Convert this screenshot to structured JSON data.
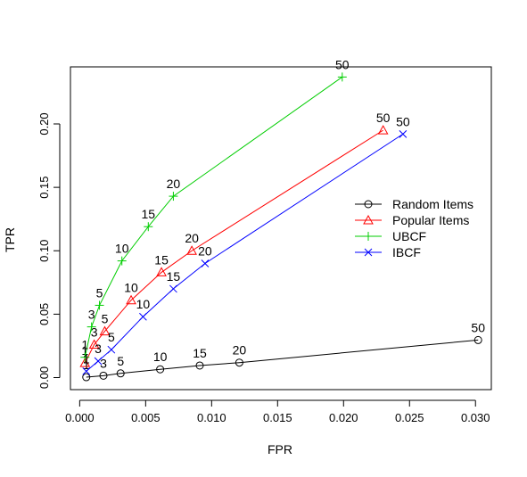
{
  "chart_data": {
    "type": "line",
    "title": "",
    "xlabel": "FPR",
    "ylabel": "TPR",
    "xlim": [
      -0.0007,
      0.0312
    ],
    "ylim": [
      -0.0095,
      0.245
    ],
    "x_ticks": [
      0.0,
      0.005,
      0.01,
      0.015,
      0.02,
      0.025,
      0.03
    ],
    "x_tick_labels": [
      "0.000",
      "0.005",
      "0.010",
      "0.015",
      "0.020",
      "0.025",
      "0.030"
    ],
    "y_ticks": [
      0.0,
      0.05,
      0.1,
      0.15,
      0.2
    ],
    "y_tick_labels": [
      "0.00",
      "0.05",
      "0.10",
      "0.15",
      "0.20"
    ],
    "grid": false,
    "legend_position": "right",
    "series": [
      {
        "name": "Random Items",
        "color": "#000000",
        "marker": "circle",
        "points": [
          {
            "x": 0.0005,
            "y": 0.0003,
            "label": "1"
          },
          {
            "x": 0.0018,
            "y": 0.0015,
            "label": "3"
          },
          {
            "x": 0.0031,
            "y": 0.0033,
            "label": "5"
          },
          {
            "x": 0.0061,
            "y": 0.0065,
            "label": "10"
          },
          {
            "x": 0.0091,
            "y": 0.0095,
            "label": "15"
          },
          {
            "x": 0.0121,
            "y": 0.0118,
            "label": "20"
          },
          {
            "x": 0.0302,
            "y": 0.0296,
            "label": "50"
          }
        ]
      },
      {
        "name": "Popular Items",
        "color": "#ff0000",
        "marker": "triangle",
        "points": [
          {
            "x": 0.0004,
            "y": 0.0115,
            "label": "1"
          },
          {
            "x": 0.0011,
            "y": 0.026,
            "label": "3"
          },
          {
            "x": 0.0019,
            "y": 0.0365,
            "label": "5"
          },
          {
            "x": 0.0039,
            "y": 0.061,
            "label": "10"
          },
          {
            "x": 0.0062,
            "y": 0.083,
            "label": "15"
          },
          {
            "x": 0.0085,
            "y": 0.1,
            "label": "20"
          },
          {
            "x": 0.023,
            "y": 0.195,
            "label": "50"
          }
        ]
      },
      {
        "name": "UBCF",
        "color": "#00cd00",
        "marker": "plus",
        "points": [
          {
            "x": 0.0004,
            "y": 0.016,
            "label": "1"
          },
          {
            "x": 0.0009,
            "y": 0.04,
            "label": "3"
          },
          {
            "x": 0.0015,
            "y": 0.057,
            "label": "5"
          },
          {
            "x": 0.0032,
            "y": 0.092,
            "label": "10"
          },
          {
            "x": 0.0052,
            "y": 0.119,
            "label": "15"
          },
          {
            "x": 0.0071,
            "y": 0.143,
            "label": "20"
          },
          {
            "x": 0.0199,
            "y": 0.237,
            "label": "50"
          }
        ]
      },
      {
        "name": "IBCF",
        "color": "#0000ff",
        "marker": "x",
        "points": [
          {
            "x": 0.0005,
            "y": 0.005,
            "label": "1"
          },
          {
            "x": 0.0014,
            "y": 0.013,
            "label": "3"
          },
          {
            "x": 0.0024,
            "y": 0.022,
            "label": "5"
          },
          {
            "x": 0.0048,
            "y": 0.048,
            "label": "10"
          },
          {
            "x": 0.0071,
            "y": 0.07,
            "label": "15"
          },
          {
            "x": 0.0095,
            "y": 0.09,
            "label": "20"
          },
          {
            "x": 0.0245,
            "y": 0.192,
            "label": "50"
          }
        ]
      }
    ]
  }
}
